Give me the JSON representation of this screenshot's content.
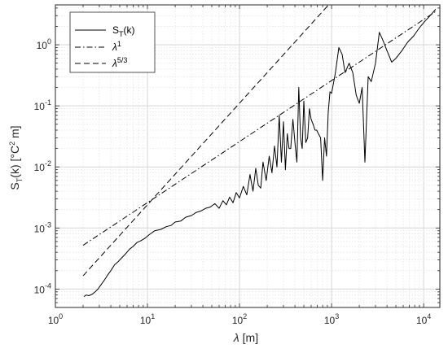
{
  "chart_data": {
    "type": "line",
    "xscale": "log",
    "yscale": "log",
    "xlim": [
      1,
      15000
    ],
    "ylim": [
      5e-05,
      4.5
    ],
    "grid": true,
    "minor_grid": true,
    "legend_position": "top-left",
    "xlabel": {
      "symbol": "λ",
      "rest": " [m]"
    },
    "ylabel": {
      "main": "S",
      "sub": "T",
      "mid": "(k) [°C",
      "sup": "2",
      "end": " m]"
    },
    "x_ticks": [
      {
        "base": "10",
        "exp": "0",
        "value": 1
      },
      {
        "base": "10",
        "exp": "1",
        "value": 10
      },
      {
        "base": "10",
        "exp": "2",
        "value": 100
      },
      {
        "base": "10",
        "exp": "3",
        "value": 1000
      },
      {
        "base": "10",
        "exp": "4",
        "value": 10000
      }
    ],
    "y_ticks": [
      {
        "base": "10",
        "exp": "-4",
        "value": 0.0001
      },
      {
        "base": "10",
        "exp": "-3",
        "value": 0.001
      },
      {
        "base": "10",
        "exp": "-2",
        "value": 0.01
      },
      {
        "base": "10",
        "exp": "-1",
        "value": 0.1
      },
      {
        "base": "10",
        "exp": "0",
        "value": 1
      }
    ],
    "legend": [
      {
        "style": "solid",
        "label": {
          "main": "S",
          "sub": "T",
          "rest": "(k)"
        }
      },
      {
        "style": "dashdot",
        "label": {
          "main": "λ",
          "sup": "1"
        }
      },
      {
        "style": "dashed",
        "label": {
          "main": "λ",
          "sup": "5/3"
        }
      }
    ],
    "series": [
      {
        "style": "solid",
        "x": [
          2.05,
          2.15,
          2.3,
          2.5,
          2.7,
          2.9,
          3.1,
          3.4,
          3.7,
          4.0,
          4.4,
          4.8,
          5.3,
          5.8,
          6.4,
          7.0,
          7.7,
          8.5,
          9.4,
          10.5,
          12,
          14,
          16,
          18,
          20,
          23,
          26,
          30,
          34,
          38,
          43,
          48,
          54,
          60,
          66,
          72,
          78,
          85,
          92,
          100,
          110,
          120,
          130,
          140,
          150,
          160,
          170,
          180,
          195,
          210,
          225,
          240,
          255,
          270,
          285,
          300,
          315,
          330,
          345,
          360,
          380,
          400,
          420,
          440,
          460,
          480,
          500,
          525,
          550,
          575,
          600,
          630,
          660,
          690,
          720,
          760,
          800,
          840,
          880,
          920,
          960,
          1000,
          1100,
          1200,
          1300,
          1400,
          1550,
          1700,
          1850,
          2000,
          2150,
          2300,
          2500,
          2700,
          3000,
          3300,
          3600,
          4000,
          4500,
          5000,
          5800,
          6700,
          7800,
          9000,
          10500,
          12000,
          13500
        ],
        "y": [
          7.5e-05,
          8e-05,
          7.8e-05,
          8.2e-05,
          9e-05,
          0.0001,
          0.000115,
          0.00014,
          0.00017,
          0.0002,
          0.00025,
          0.00028,
          0.00033,
          0.00038,
          0.00045,
          0.0005,
          0.00058,
          0.00062,
          0.00068,
          0.00078,
          0.0009,
          0.00095,
          0.00105,
          0.0011,
          0.00125,
          0.0013,
          0.0015,
          0.0016,
          0.0018,
          0.0019,
          0.0021,
          0.0022,
          0.0025,
          0.0021,
          0.0028,
          0.0024,
          0.0032,
          0.0026,
          0.0038,
          0.0031,
          0.0048,
          0.0035,
          0.0075,
          0.004,
          0.0095,
          0.005,
          0.0045,
          0.012,
          0.006,
          0.015,
          0.008,
          0.022,
          0.01,
          0.07,
          0.012,
          0.055,
          0.009,
          0.035,
          0.02,
          0.02,
          0.06,
          0.025,
          0.012,
          0.2,
          0.03,
          0.02,
          0.12,
          0.025,
          0.03,
          0.09,
          0.06,
          0.05,
          0.04,
          0.04,
          0.035,
          0.03,
          0.006,
          0.03,
          0.015,
          0.08,
          0.17,
          0.16,
          0.35,
          0.9,
          0.7,
          0.35,
          0.5,
          0.35,
          0.15,
          0.11,
          0.2,
          0.012,
          0.3,
          0.25,
          0.5,
          1.6,
          1.2,
          0.8,
          0.52,
          0.6,
          0.8,
          1.1,
          1.4,
          1.9,
          2.5,
          3.1,
          3.8
        ]
      },
      {
        "style": "dashdot",
        "x": [
          2,
          13500
        ],
        "y": [
          0.00052,
          3.5
        ]
      },
      {
        "style": "dashed",
        "x": [
          2,
          1000
        ],
        "y": [
          0.000165,
          5.1
        ]
      }
    ]
  }
}
